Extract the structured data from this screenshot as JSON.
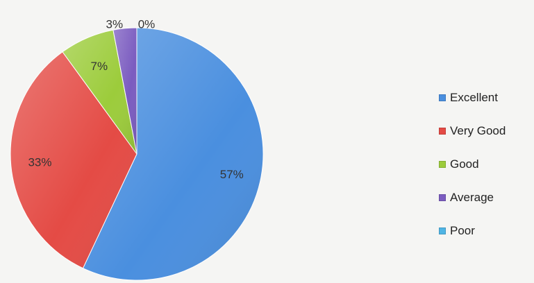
{
  "chart_data": {
    "type": "pie",
    "categories": [
      "Excellent",
      "Very Good",
      "Good",
      "Average",
      "Poor"
    ],
    "values": [
      57,
      33,
      7,
      3,
      0
    ],
    "data_labels": [
      "57%",
      "33%",
      "7%",
      "3%",
      "0%"
    ],
    "colors": [
      "#4a8fdf",
      "#e44b45",
      "#9ccc3b",
      "#7b5cc0",
      "#4fb4e4"
    ],
    "legend_position": "right",
    "start_angle_deg": 0,
    "direction": "clockwise"
  }
}
